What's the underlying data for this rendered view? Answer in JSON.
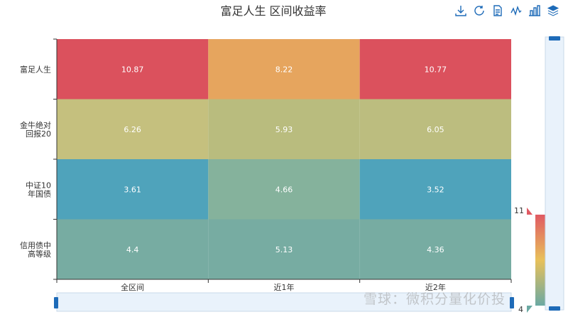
{
  "title": "富足人生 区间收益率",
  "toolbox": [
    {
      "name": "download-icon"
    },
    {
      "name": "refresh-icon"
    },
    {
      "name": "data-view-icon"
    },
    {
      "name": "line-chart-icon"
    },
    {
      "name": "bar-chart-icon"
    },
    {
      "name": "stack-icon"
    }
  ],
  "watermark": "雪球：微积分量化价投",
  "visual_map": {
    "max_label": "11",
    "min_label": "4",
    "range": [
      4,
      11
    ],
    "colors": [
      "#6ba9a3",
      "#e8c15a",
      "#e05a63"
    ]
  },
  "chart_data": {
    "type": "heatmap",
    "title": "富足人生 区间收益率",
    "x_categories": [
      "全区间",
      "近1年",
      "近2年"
    ],
    "y_categories": [
      "富足人生",
      "金牛绝对回报20",
      "中证10年国债",
      "信用债中高等级"
    ],
    "y_label_lines": [
      [
        "富足人生"
      ],
      [
        "金牛绝对",
        "回报20"
      ],
      [
        "中证10",
        "年国债"
      ],
      [
        "信用债中",
        "高等级"
      ]
    ],
    "values": [
      [
        10.87,
        8.22,
        10.77
      ],
      [
        6.26,
        5.93,
        6.05
      ],
      [
        3.61,
        4.66,
        3.52
      ],
      [
        4.4,
        5.13,
        4.36
      ]
    ],
    "value_labels": [
      [
        "10.87",
        "8.22",
        "10.77"
      ],
      [
        "6.26",
        "5.93",
        "6.05"
      ],
      [
        "3.61",
        "4.66",
        "3.52"
      ],
      [
        "4.4",
        "5.13",
        "4.36"
      ]
    ],
    "cell_colors": [
      [
        "#db515d",
        "#e6a55e",
        "#db515d"
      ],
      [
        "#c5c07e",
        "#b9bc7e",
        "#bcbd7f"
      ],
      [
        "#4fa3bb",
        "#85b29c",
        "#4fa3bb"
      ],
      [
        "#77aca2",
        "#77aca2",
        "#77aca2"
      ]
    ]
  }
}
